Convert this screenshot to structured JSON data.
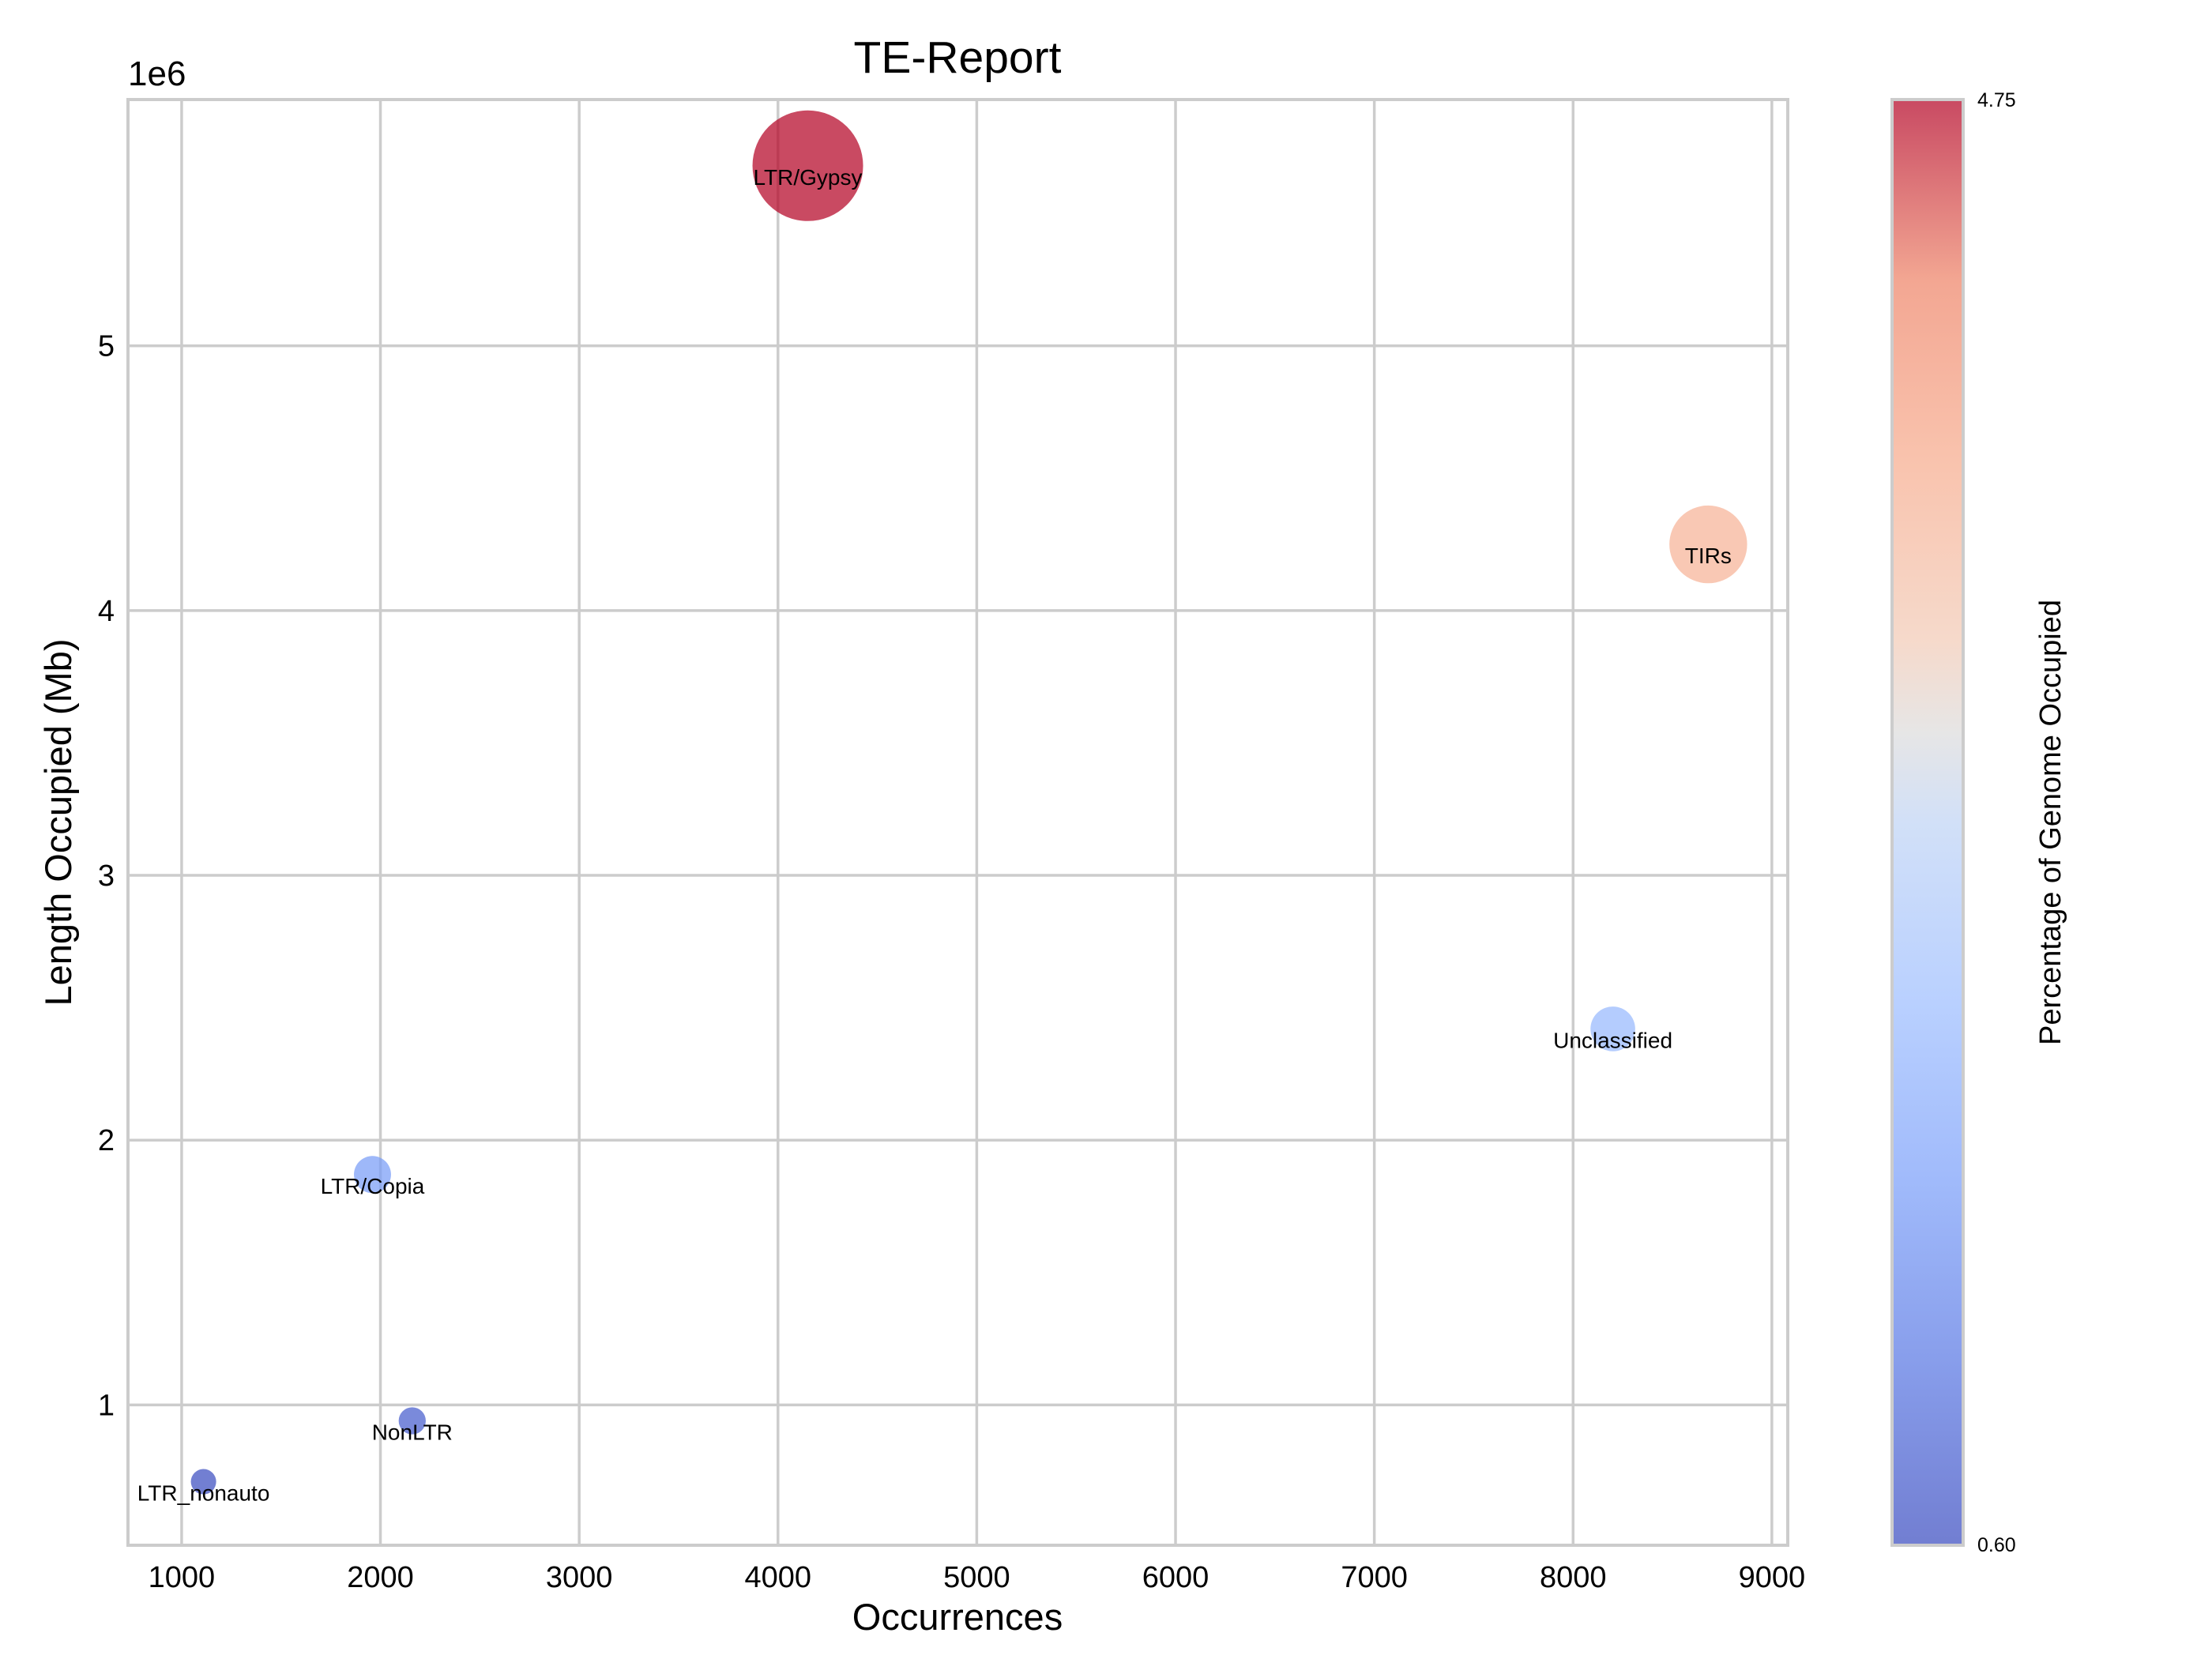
{
  "chart_data": {
    "type": "scatter",
    "title": "TE-Report",
    "xlabel": "Occurrences",
    "ylabel": "Length Occupied (Mb)",
    "y_offset_label": "1e6",
    "xlim": [
      730,
      9080
    ],
    "ylim": [
      470000,
      5930000
    ],
    "xticks": [
      1000,
      2000,
      3000,
      4000,
      5000,
      6000,
      7000,
      8000,
      9000
    ],
    "yticks": [
      1000000,
      2000000,
      3000000,
      4000000,
      5000000
    ],
    "ytick_labels": [
      "1",
      "2",
      "3",
      "4",
      "5"
    ],
    "grid": true,
    "points": [
      {
        "label": "LTR/Gypsy",
        "x": 4150,
        "y": 5680000,
        "color_value": 4.75
      },
      {
        "label": "TIRs",
        "x": 8680,
        "y": 4250000,
        "color_value": 3.6
      },
      {
        "label": "Unclassified",
        "x": 8200,
        "y": 2420000,
        "color_value": 2.05
      },
      {
        "label": "LTR/Copia",
        "x": 1960,
        "y": 1870000,
        "color_value": 1.6
      },
      {
        "label": "NonLTR",
        "x": 2160,
        "y": 940000,
        "color_value": 0.8
      },
      {
        "label": "LTR_nonauto",
        "x": 1110,
        "y": 710000,
        "color_value": 0.62
      }
    ],
    "colorbar": {
      "label": "Percentage of Genome Occupied",
      "min": 0.6,
      "max": 4.75,
      "tick_labels": [
        "4.75",
        "0.60"
      ],
      "colormap": "coolwarm"
    }
  }
}
